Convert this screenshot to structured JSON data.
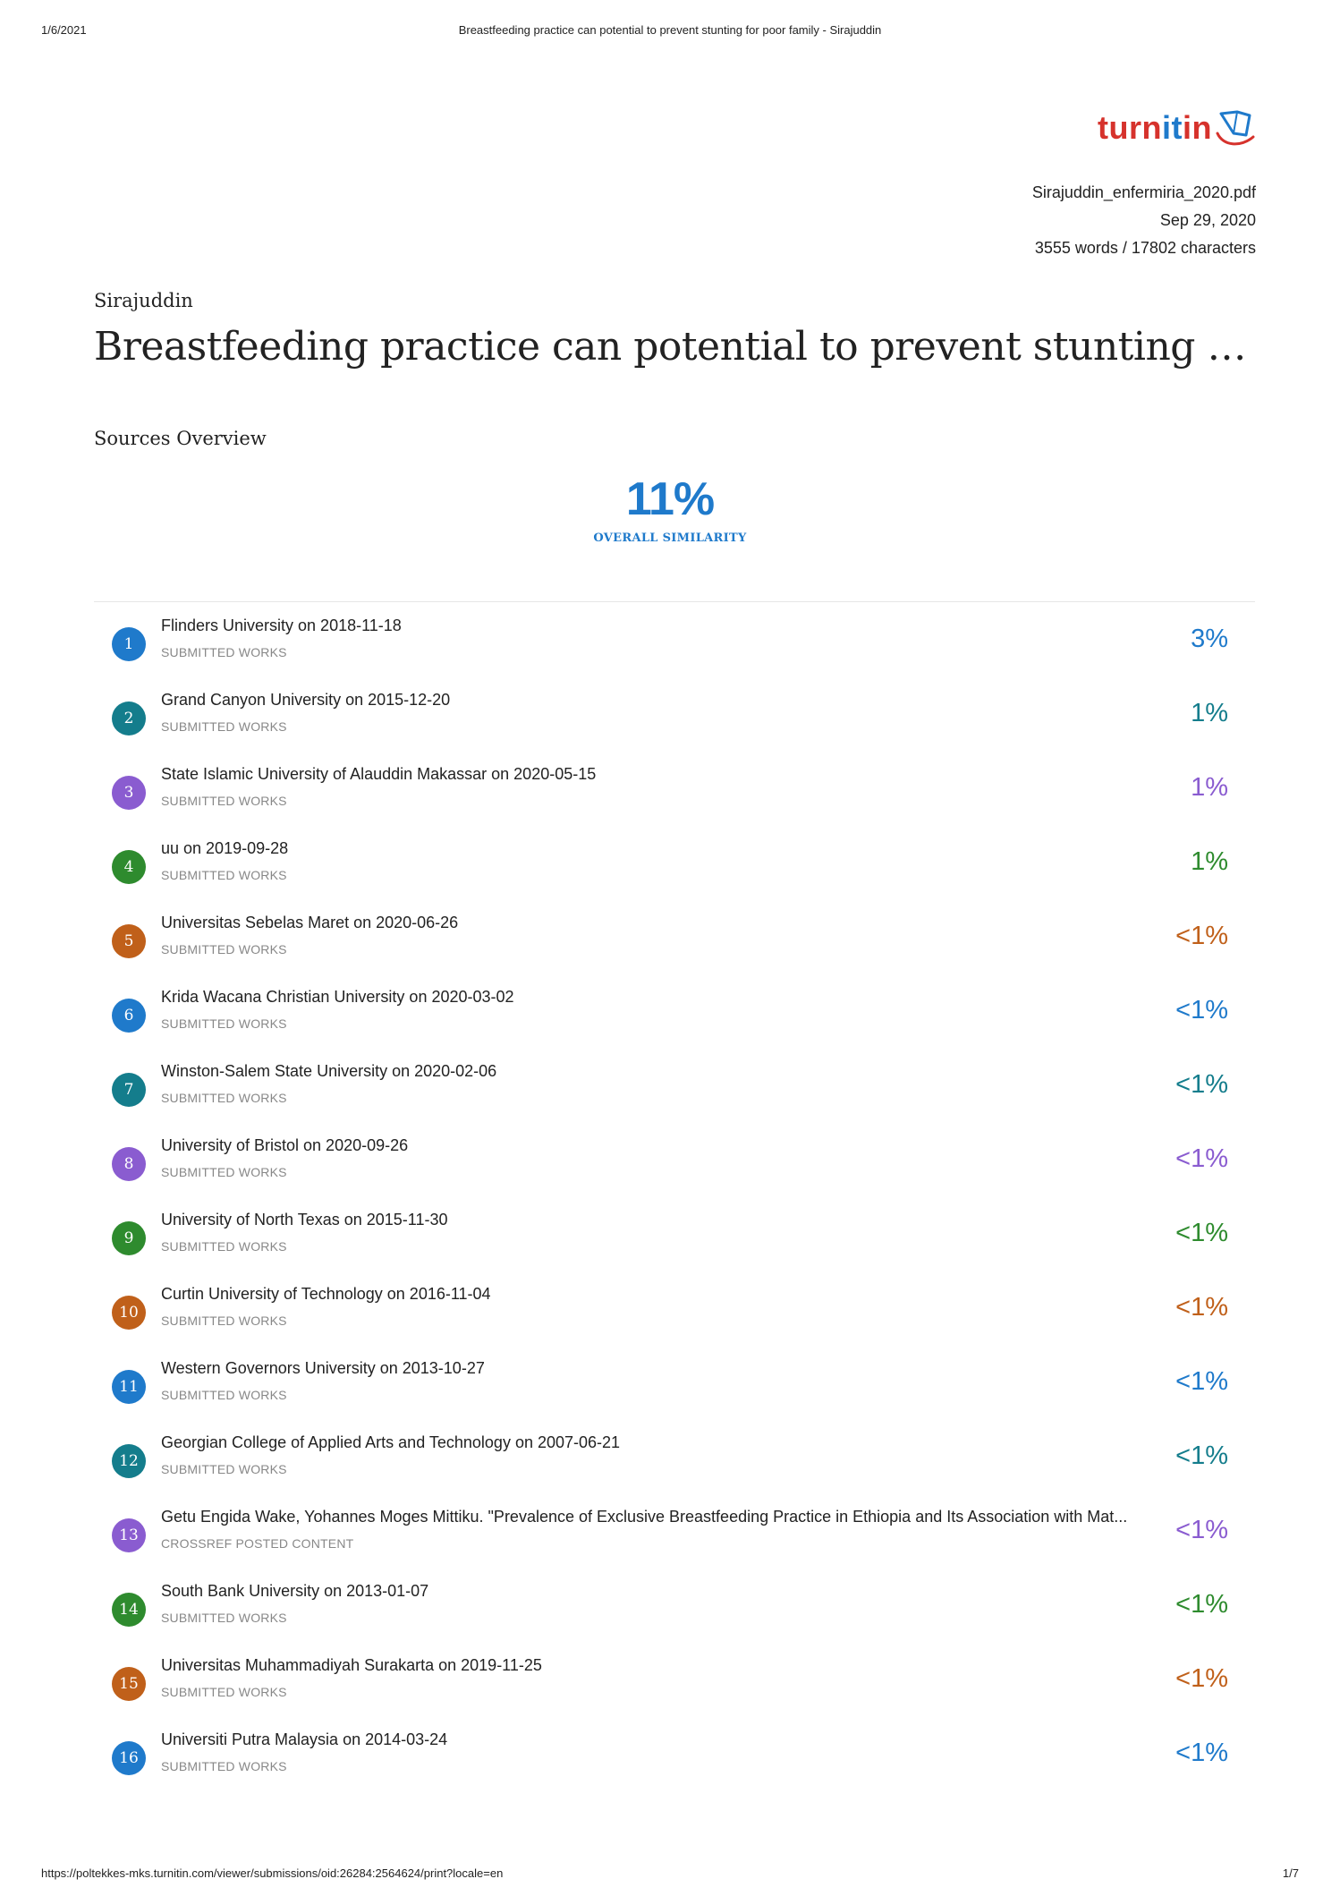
{
  "print_header": {
    "date": "1/6/2021",
    "title": "Breastfeeding practice can potential to prevent stunting for poor family - Sirajuddin"
  },
  "logo": {
    "text_a": "turn",
    "text_b": "it",
    "text_c": "in",
    "accent_red": "#d6322c",
    "accent_blue": "#1f7acb"
  },
  "file_meta": {
    "filename": "Sirajuddin_enfermiria_2020.pdf",
    "date": "Sep 29, 2020",
    "counts": "3555 words / 17802 characters"
  },
  "author": "Sirajuddin",
  "title": "Breastfeeding practice can potential to prevent stunting for poo...",
  "sources_heading": "Sources Overview",
  "overall": {
    "percent": "11%",
    "label": "OVERALL SIMILARITY"
  },
  "colors": {
    "blue": "#1f7acb",
    "teal": "#147d8c",
    "purple": "#8a5cd0",
    "green": "#2e8b2e",
    "orange": "#c0601a"
  },
  "sources": [
    {
      "num": "1",
      "name": "Flinders University on 2018-11-18",
      "type": "SUBMITTED WORKS",
      "pct": "3%",
      "color": "#1f7acb"
    },
    {
      "num": "2",
      "name": "Grand Canyon University on 2015-12-20",
      "type": "SUBMITTED WORKS",
      "pct": "1%",
      "color": "#147d8c"
    },
    {
      "num": "3",
      "name": "State Islamic University of Alauddin Makassar on 2020-05-15",
      "type": "SUBMITTED WORKS",
      "pct": "1%",
      "color": "#8a5cd0"
    },
    {
      "num": "4",
      "name": "uu on 2019-09-28",
      "type": "SUBMITTED WORKS",
      "pct": "1%",
      "color": "#2e8b2e"
    },
    {
      "num": "5",
      "name": "Universitas Sebelas Maret on 2020-06-26",
      "type": "SUBMITTED WORKS",
      "pct": "<1%",
      "color": "#c0601a"
    },
    {
      "num": "6",
      "name": "Krida Wacana Christian University on 2020-03-02",
      "type": "SUBMITTED WORKS",
      "pct": "<1%",
      "color": "#1f7acb"
    },
    {
      "num": "7",
      "name": "Winston-Salem State University on 2020-02-06",
      "type": "SUBMITTED WORKS",
      "pct": "<1%",
      "color": "#147d8c"
    },
    {
      "num": "8",
      "name": "University of Bristol on 2020-09-26",
      "type": "SUBMITTED WORKS",
      "pct": "<1%",
      "color": "#8a5cd0"
    },
    {
      "num": "9",
      "name": "University of North Texas on 2015-11-30",
      "type": "SUBMITTED WORKS",
      "pct": "<1%",
      "color": "#2e8b2e"
    },
    {
      "num": "10",
      "name": "Curtin University of Technology on 2016-11-04",
      "type": "SUBMITTED WORKS",
      "pct": "<1%",
      "color": "#c0601a"
    },
    {
      "num": "11",
      "name": "Western Governors University on 2013-10-27",
      "type": "SUBMITTED WORKS",
      "pct": "<1%",
      "color": "#1f7acb"
    },
    {
      "num": "12",
      "name": "Georgian College of Applied Arts and Technology on 2007-06-21",
      "type": "SUBMITTED WORKS",
      "pct": "<1%",
      "color": "#147d8c"
    },
    {
      "num": "13",
      "name": "Getu Engida Wake, Yohannes Moges Mittiku. \"Prevalence of Exclusive Breastfeeding Practice in Ethiopia and Its Association with Mat...",
      "type": "CROSSREF POSTED CONTENT",
      "pct": "<1%",
      "color": "#8a5cd0"
    },
    {
      "num": "14",
      "name": "South Bank University on 2013-01-07",
      "type": "SUBMITTED WORKS",
      "pct": "<1%",
      "color": "#2e8b2e"
    },
    {
      "num": "15",
      "name": "Universitas Muhammadiyah Surakarta on 2019-11-25",
      "type": "SUBMITTED WORKS",
      "pct": "<1%",
      "color": "#c0601a"
    },
    {
      "num": "16",
      "name": "Universiti Putra Malaysia on 2014-03-24",
      "type": "SUBMITTED WORKS",
      "pct": "<1%",
      "color": "#1f7acb"
    }
  ],
  "print_footer": {
    "url": "https://poltekkes-mks.turnitin.com/viewer/submissions/oid:26284:2564624/print?locale=en",
    "page": "1/7"
  }
}
